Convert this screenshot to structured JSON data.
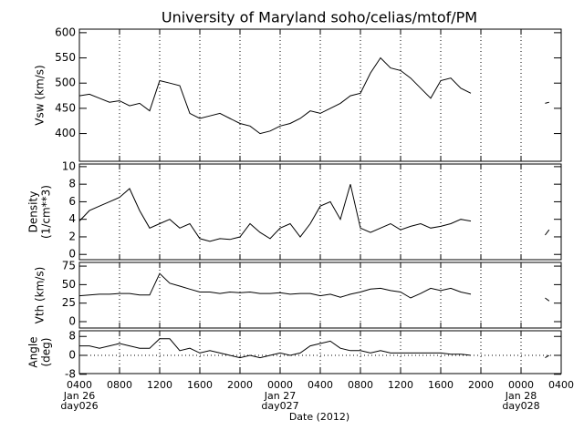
{
  "title": "University of Maryland  soho/celias/mtof/PM",
  "xlabel": "Date (2012)",
  "xlim": [
    0,
    48
  ],
  "xticks": [
    {
      "value": 0,
      "label": "0400"
    },
    {
      "value": 4,
      "label": "0800"
    },
    {
      "value": 8,
      "label": "1200"
    },
    {
      "value": 12,
      "label": "1600"
    },
    {
      "value": 16,
      "label": "2000"
    },
    {
      "value": 20,
      "label": "0000"
    },
    {
      "value": 24,
      "label": "0400"
    },
    {
      "value": 28,
      "label": "0800"
    },
    {
      "value": 32,
      "label": "1200"
    },
    {
      "value": 36,
      "label": "1600"
    },
    {
      "value": 40,
      "label": "2000"
    },
    {
      "value": 44,
      "label": "0000"
    },
    {
      "value": 48,
      "label": "0400"
    }
  ],
  "date_labels": [
    {
      "value": 0,
      "lines": [
        "Jan 26",
        "day026"
      ]
    },
    {
      "value": 20,
      "lines": [
        "Jan 27",
        "day027"
      ]
    },
    {
      "value": 44,
      "lines": [
        "Jan 28",
        "day028"
      ]
    }
  ],
  "chart_data": [
    {
      "type": "line",
      "ylabel": [
        "Vsw (km/s)"
      ],
      "color": "#000000",
      "ylim": [
        345,
        607
      ],
      "yticks": [
        400,
        450,
        500,
        550,
        600
      ],
      "x": [
        0,
        1,
        2,
        3,
        4,
        5,
        6,
        7,
        8,
        9,
        10,
        11,
        12,
        13,
        14,
        15,
        16,
        17,
        18,
        19,
        20,
        21,
        22,
        23,
        24,
        25,
        26,
        27,
        28,
        29,
        30,
        31,
        32,
        33,
        34,
        35,
        36,
        37,
        38,
        39,
        42,
        46.4,
        46.8
      ],
      "values": [
        475,
        478,
        470,
        462,
        465,
        455,
        460,
        445,
        505,
        500,
        495,
        440,
        430,
        435,
        440,
        430,
        420,
        415,
        400,
        405,
        415,
        420,
        430,
        445,
        440,
        450,
        460,
        475,
        480,
        520,
        550,
        530,
        525,
        510,
        490,
        470,
        505,
        510,
        490,
        480,
        null,
        460,
        462
      ]
    },
    {
      "type": "line",
      "ylabel": [
        "Density",
        "(1/cm**3)"
      ],
      "color": "#000000",
      "ylim": [
        -0.6,
        10.3
      ],
      "yticks": [
        0,
        2,
        4,
        6,
        8,
        10
      ],
      "x": [
        0,
        1,
        2,
        3,
        4,
        5,
        6,
        7,
        8,
        9,
        10,
        11,
        12,
        13,
        14,
        15,
        16,
        17,
        18,
        19,
        20,
        21,
        22,
        23,
        24,
        25,
        26,
        27,
        28,
        29,
        30,
        31,
        32,
        33,
        34,
        35,
        36,
        37,
        38,
        39,
        42,
        46.4,
        46.8
      ],
      "values": [
        3.8,
        5.0,
        5.5,
        6.0,
        6.5,
        7.5,
        5.0,
        3.0,
        3.5,
        4.0,
        3.0,
        3.5,
        1.8,
        1.5,
        1.8,
        1.7,
        2.0,
        3.5,
        2.5,
        1.8,
        3.0,
        3.5,
        2.0,
        3.5,
        5.5,
        6.0,
        4.0,
        8.0,
        3.0,
        2.5,
        3.0,
        3.5,
        2.8,
        3.2,
        3.5,
        3.0,
        3.2,
        3.5,
        4.0,
        3.8,
        null,
        2.2,
        2.8
      ]
    },
    {
      "type": "line",
      "ylabel": [
        "Vth  (km/s)"
      ],
      "color": "#000000",
      "ylim": [
        -8.6,
        80
      ],
      "yticks": [
        0,
        25,
        50,
        75
      ],
      "x": [
        0,
        1,
        2,
        3,
        4,
        5,
        6,
        7,
        8,
        9,
        10,
        11,
        12,
        13,
        14,
        15,
        16,
        17,
        18,
        19,
        20,
        21,
        22,
        23,
        24,
        25,
        26,
        27,
        28,
        29,
        30,
        31,
        32,
        33,
        34,
        35,
        36,
        37,
        38,
        39,
        42,
        46.4,
        46.8
      ],
      "values": [
        35,
        36,
        37,
        37,
        38,
        38,
        36,
        36,
        65,
        52,
        48,
        44,
        40,
        40,
        38,
        40,
        39,
        40,
        38,
        38,
        39,
        37,
        38,
        38,
        35,
        37,
        33,
        37,
        40,
        44,
        45,
        42,
        40,
        32,
        38,
        45,
        42,
        45,
        40,
        37,
        null,
        32,
        28
      ]
    },
    {
      "type": "line",
      "ylabel": [
        "Angle",
        "(deg)"
      ],
      "color": "#000000",
      "ylim": [
        -7.7,
        10.4
      ],
      "yticks": [
        -8,
        0,
        8
      ],
      "zero_line": true,
      "x": [
        0,
        1,
        2,
        3,
        4,
        5,
        6,
        7,
        8,
        9,
        10,
        11,
        12,
        13,
        14,
        15,
        16,
        17,
        18,
        19,
        20,
        21,
        22,
        23,
        24,
        25,
        26,
        27,
        28,
        29,
        30,
        31,
        32,
        33,
        34,
        35,
        36,
        37,
        38,
        39,
        42,
        46.4,
        46.8
      ],
      "values": [
        4,
        4,
        3,
        4,
        5,
        4,
        3,
        3,
        7,
        7,
        2,
        3,
        1,
        2,
        1,
        0,
        -1,
        0,
        -1,
        0,
        1,
        0,
        1,
        4,
        5,
        6,
        3,
        2,
        2,
        1,
        2,
        1,
        1,
        1,
        1,
        1,
        1,
        0.5,
        0.5,
        0,
        null,
        -1,
        0
      ]
    }
  ]
}
